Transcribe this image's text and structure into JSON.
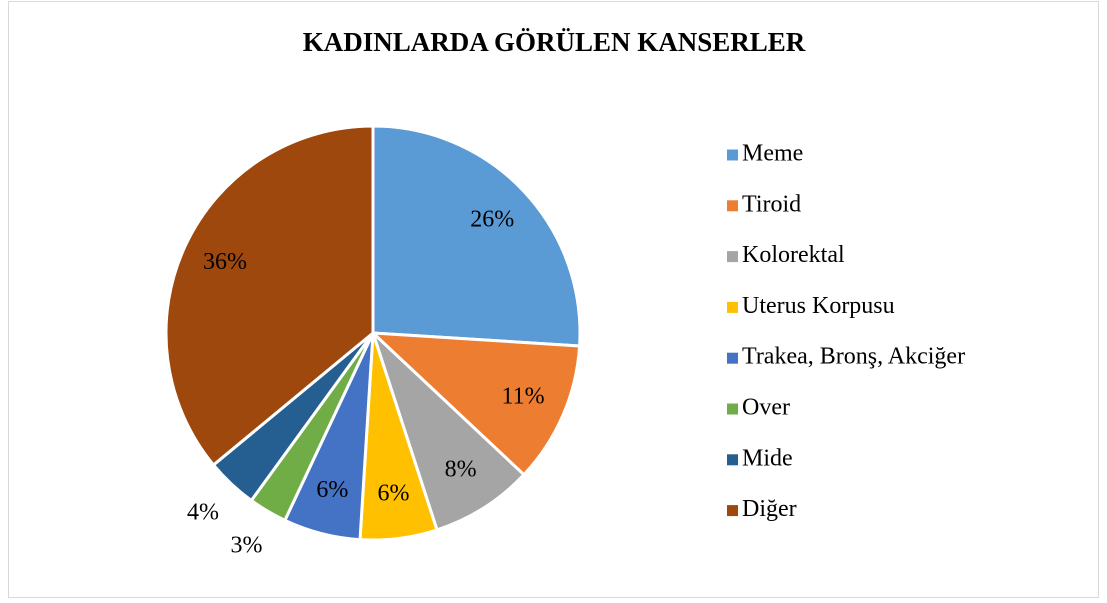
{
  "chart_data": {
    "type": "pie",
    "title": "KADINLARDA GÖRÜLEN KANSERLER",
    "categories": [
      "Meme",
      "Tiroid",
      "Kolorektal",
      "Uterus Korpusu",
      "Trakea, Bronş, Akciğer",
      "Over",
      "Mide",
      "Diğer"
    ],
    "values": [
      26,
      11,
      8,
      6,
      6,
      3,
      4,
      36
    ],
    "value_labels": [
      "26%",
      "11%",
      "8%",
      "6%",
      "6%",
      "3%",
      "4%",
      "36%"
    ],
    "colors": [
      "#5b9bd5",
      "#ed7d31",
      "#a5a5a5",
      "#ffc000",
      "#4472c4",
      "#70ad47",
      "#255e91",
      "#9e480e"
    ],
    "legend": "right"
  }
}
